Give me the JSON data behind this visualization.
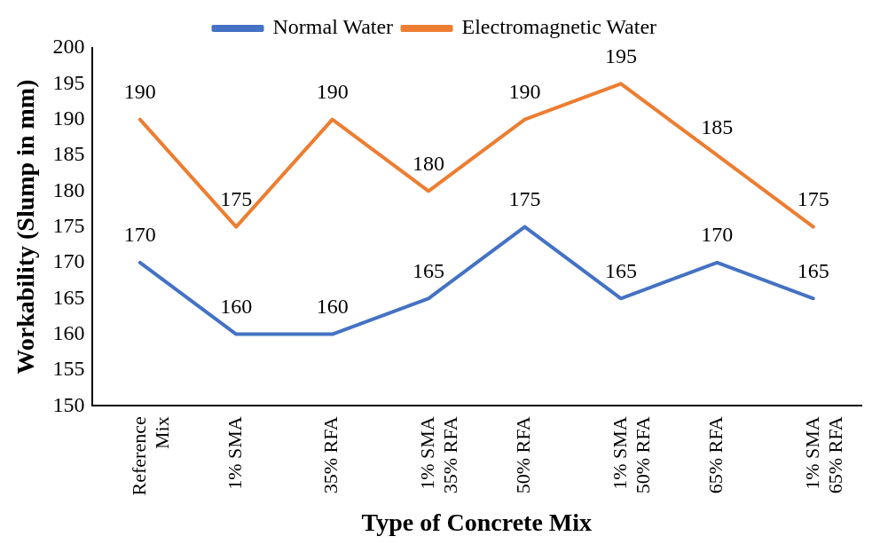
{
  "chart_data": {
    "type": "line",
    "xlabel": "Type of Concrete Mix",
    "ylabel": "Workability (Slump in mm)",
    "categories": [
      "Reference\nMix",
      "1% SMA",
      "35% RFA",
      "1% SMA\n35% RFA",
      "50% RFA",
      "1% SMA\n50% RFA",
      "65% RFA",
      "1% SMA\n65% RFA"
    ],
    "series": [
      {
        "name": "Normal Water",
        "color": "#4472c4",
        "values": [
          170,
          160,
          160,
          165,
          175,
          165,
          170,
          165
        ]
      },
      {
        "name": "Electromagnetic Water",
        "color": "#ed7d31",
        "values": [
          190,
          175,
          190,
          180,
          190,
          195,
          185,
          175
        ]
      }
    ],
    "ylim": [
      150,
      200
    ],
    "yticks": [
      150,
      155,
      160,
      165,
      170,
      175,
      180,
      185,
      190,
      195,
      200
    ],
    "grid": false,
    "legend": "top",
    "marker": "none",
    "line_style": "solid",
    "data_labels": true
  }
}
